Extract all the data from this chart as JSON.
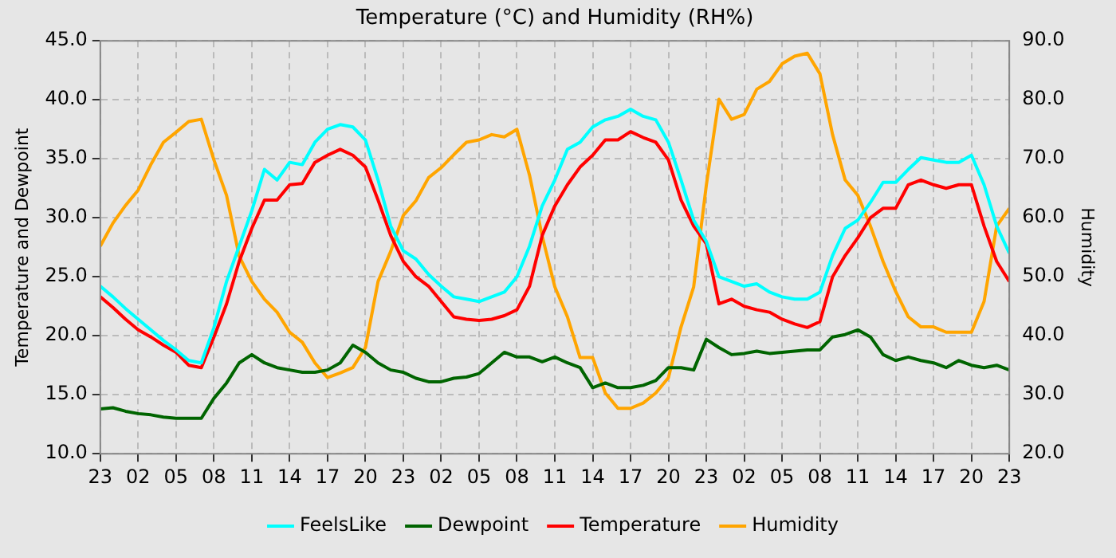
{
  "chart_data": {
    "type": "line",
    "title": "Temperature (°C) and Humidity (RH%)",
    "ylabel": "Temperature and Dewpoint",
    "y2label": "Humidity",
    "categories": [
      "23",
      null,
      null,
      "02",
      null,
      null,
      "05",
      null,
      null,
      "08",
      null,
      null,
      "11",
      null,
      null,
      "14",
      null,
      null,
      "17",
      null,
      null,
      "20",
      null,
      null,
      "23",
      null,
      null,
      "02",
      null,
      null,
      "05",
      null,
      null,
      "08",
      null,
      null,
      "11",
      null,
      null,
      "14",
      null,
      null,
      "17",
      null,
      null,
      "20",
      null,
      null,
      "23",
      null,
      null,
      "02",
      null,
      null,
      "05",
      null,
      null,
      "08",
      null,
      null,
      "11",
      null,
      null,
      "14",
      null,
      null,
      "17",
      null,
      null,
      "20",
      null,
      null,
      "23"
    ],
    "ylim": [
      10,
      45
    ],
    "yticks": [
      {
        "value": 10,
        "label": "10.0"
      },
      {
        "value": 15,
        "label": "15.0"
      },
      {
        "value": 20,
        "label": "20.0"
      },
      {
        "value": 25,
        "label": "25.0"
      },
      {
        "value": 30,
        "label": "30.0"
      },
      {
        "value": 35,
        "label": "35.0"
      },
      {
        "value": 40,
        "label": "40.0"
      },
      {
        "value": 45,
        "label": "45.0"
      }
    ],
    "y2lim": [
      20,
      90
    ],
    "y2ticks": [
      {
        "value": 20,
        "label": "20.0"
      },
      {
        "value": 30,
        "label": "30.0"
      },
      {
        "value": 40,
        "label": "40.0"
      },
      {
        "value": 50,
        "label": "50.0"
      },
      {
        "value": 60,
        "label": "60.0"
      },
      {
        "value": 70,
        "label": "70.0"
      },
      {
        "value": 80,
        "label": "80.0"
      },
      {
        "value": 90,
        "label": "90.0"
      }
    ],
    "grid": true,
    "legend": "bottom",
    "line_style": "solid",
    "marker": "none",
    "series": [
      {
        "name": "FeelsLike",
        "color": "#00ffff",
        "values": [
          24.2,
          23.3,
          22.3,
          21.4,
          20.5,
          19.6,
          18.8,
          17.9,
          17.7,
          20.7,
          24.6,
          27.6,
          30.6,
          34.1,
          33.2,
          34.7,
          34.5,
          36.4,
          37.5,
          37.9,
          37.7,
          36.6,
          33.2,
          29.3,
          27.2,
          26.5,
          25.2,
          24.2,
          23.3,
          23.1,
          22.9,
          23.3,
          23.7,
          25.0,
          27.6,
          31.0,
          33.2,
          35.8,
          36.4,
          37.7,
          38.3,
          38.6,
          39.2,
          38.6,
          38.3,
          36.4,
          33.2,
          29.8,
          28.0,
          25.0,
          24.6,
          24.2,
          24.4,
          23.7,
          23.3,
          23.1,
          23.1,
          23.7,
          26.8,
          29.1,
          29.8,
          31.3,
          33.0,
          33.0,
          34.1,
          35.1,
          34.9,
          34.7,
          34.7,
          35.3,
          32.8,
          29.3,
          27.0
        ]
      },
      {
        "name": "Dewpoint",
        "color": "#006400",
        "values": [
          13.8,
          13.9,
          13.6,
          13.4,
          13.3,
          13.1,
          13.0,
          13.0,
          13.0,
          14.7,
          16.0,
          17.7,
          18.4,
          17.7,
          17.3,
          17.1,
          16.9,
          16.9,
          17.1,
          17.7,
          19.2,
          18.6,
          17.7,
          17.1,
          16.9,
          16.4,
          16.1,
          16.1,
          16.4,
          16.5,
          16.8,
          17.7,
          18.6,
          18.2,
          18.2,
          17.8,
          18.2,
          17.7,
          17.3,
          15.6,
          16.0,
          15.6,
          15.6,
          15.8,
          16.2,
          17.3,
          17.3,
          17.1,
          19.7,
          19.0,
          18.4,
          18.5,
          18.7,
          18.5,
          18.6,
          18.7,
          18.8,
          18.8,
          19.9,
          20.1,
          20.5,
          19.9,
          18.4,
          17.9,
          18.2,
          17.9,
          17.7,
          17.3,
          17.9,
          17.5,
          17.3,
          17.5,
          17.1
        ]
      },
      {
        "name": "Temperature",
        "color": "#ff0000",
        "values": [
          23.3,
          22.4,
          21.4,
          20.5,
          19.9,
          19.2,
          18.6,
          17.5,
          17.3,
          19.9,
          22.7,
          26.3,
          29.1,
          31.5,
          31.5,
          32.8,
          32.9,
          34.7,
          35.3,
          35.8,
          35.3,
          34.3,
          31.5,
          28.5,
          26.3,
          25.0,
          24.2,
          22.9,
          21.6,
          21.4,
          21.3,
          21.4,
          21.7,
          22.2,
          24.2,
          28.5,
          31.0,
          32.8,
          34.3,
          35.3,
          36.6,
          36.6,
          37.3,
          36.8,
          36.4,
          34.9,
          31.5,
          29.3,
          27.8,
          22.7,
          23.1,
          22.5,
          22.2,
          22.0,
          21.4,
          21.0,
          20.7,
          21.2,
          25.0,
          26.8,
          28.3,
          30.0,
          30.8,
          30.8,
          32.8,
          33.2,
          32.8,
          32.5,
          32.8,
          32.8,
          29.3,
          26.3,
          24.6
        ]
      },
      {
        "name": "Humidity",
        "color": "#ffa500",
        "axis": "y2",
        "values": [
          55.2,
          59.1,
          62.1,
          64.7,
          69.0,
          72.8,
          74.5,
          76.3,
          76.7,
          69.8,
          63.8,
          53.5,
          49.2,
          46.2,
          44.0,
          40.6,
          38.9,
          35.4,
          32.9,
          33.7,
          34.6,
          38.0,
          49.2,
          54.3,
          60.4,
          62.9,
          66.8,
          68.5,
          70.7,
          72.8,
          73.2,
          74.1,
          73.7,
          75.0,
          67.2,
          56.9,
          48.3,
          43.2,
          36.3,
          36.3,
          30.3,
          27.7,
          27.7,
          28.6,
          30.3,
          32.9,
          41.5,
          48.3,
          65.5,
          80.1,
          76.7,
          77.5,
          81.8,
          83.1,
          86.1,
          87.4,
          87.9,
          84.4,
          74.1,
          66.4,
          63.8,
          58.6,
          52.6,
          47.5,
          43.2,
          41.5,
          41.5,
          40.6,
          40.6,
          40.6,
          45.8,
          58.6,
          61.6
        ]
      }
    ]
  }
}
